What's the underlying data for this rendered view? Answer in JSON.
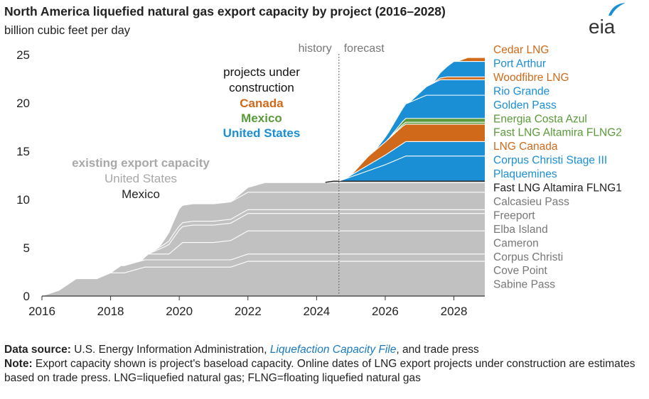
{
  "title": "North America liquefied natural gas export capacity by project (2016–2028)",
  "subtitle": "billion cubic feet per day",
  "logo_text": "eia",
  "footer": {
    "source_label": "Data source:",
    "source_text_1": " U.S. Energy Information Administration, ",
    "source_link": "Liquefaction Capacity File",
    "source_text_2": ", and trade press",
    "note_label": "Note:",
    "note_text": " Export capacity shown is project's baseload capacity. Online dates of LNG export projects under construction are estimates based on trade press. LNG=liquefied natural gas; FLNG=floating liquefied natural gas"
  },
  "colors": {
    "existing": "#c1c1c1",
    "us": "#1a8fd6",
    "canada": "#d06a1a",
    "mexico": "#5a9a3a",
    "mexico_existing": "#555555",
    "label_gray": "#777777",
    "axis": "#333333"
  },
  "chart_data": {
    "type": "area",
    "stacked": true,
    "xlim": [
      2016,
      2028.9
    ],
    "ylim": [
      0,
      25
    ],
    "x_ticks": [
      2016,
      2018,
      2020,
      2022,
      2024,
      2026,
      2028
    ],
    "y_ticks": [
      0,
      5,
      10,
      15,
      20,
      25
    ],
    "grid": false,
    "divider": {
      "x": 2024.65,
      "left_label": "history",
      "right_label": "forecast"
    },
    "annotations": {
      "construction": {
        "line1": "projects under",
        "line2": "construction",
        "canada": "Canada",
        "mexico": "Mexico",
        "us": "United States"
      },
      "existing": {
        "line1": "existing export capacity",
        "line2": "United States",
        "line3": "Mexico"
      }
    },
    "series": [
      {
        "name": "Sabine Pass",
        "group": "existing",
        "country": "United States",
        "x": [
          2016,
          2016.5,
          2017,
          2017.6,
          2018,
          2018.4,
          2019,
          2020,
          2021,
          2021.5,
          2022,
          2022.5,
          2028.9
        ],
        "values": [
          0,
          0.6,
          1.8,
          1.8,
          2.4,
          2.4,
          3.0,
          3.0,
          3.0,
          3.0,
          3.6,
          3.6,
          3.6
        ]
      },
      {
        "name": "Cove Point",
        "group": "existing",
        "country": "United States",
        "x": [
          2016,
          2018,
          2018.3,
          2028.9
        ],
        "values": [
          0,
          0,
          0.75,
          0.75
        ]
      },
      {
        "name": "Corpus Christi",
        "group": "existing",
        "country": "United States",
        "x": [
          2016,
          2018.9,
          2019.1,
          2019.7,
          2020.1,
          2021,
          2021.5,
          2022,
          2028.9
        ],
        "values": [
          0,
          0,
          0.6,
          0.6,
          1.8,
          1.8,
          2.0,
          2.4,
          2.4
        ]
      },
      {
        "name": "Cameron",
        "group": "existing",
        "country": "United States",
        "x": [
          2016,
          2019.1,
          2019.6,
          2020,
          2020.4,
          2028.9
        ],
        "values": [
          0,
          0,
          0.8,
          1.6,
          1.8,
          1.8
        ]
      },
      {
        "name": "Elba Island",
        "group": "existing",
        "country": "United States",
        "x": [
          2016,
          2019.1,
          2019.8,
          2028.9
        ],
        "values": [
          0,
          0,
          0.4,
          0.4
        ]
      },
      {
        "name": "Freeport",
        "group": "existing",
        "country": "United States",
        "x": [
          2016,
          2019.4,
          2020,
          2028.9
        ],
        "values": [
          0,
          0,
          1.8,
          1.8
        ]
      },
      {
        "name": "Calcasieu Pass",
        "group": "existing",
        "country": "United States",
        "x": [
          2016,
          2021.5,
          2022.5,
          2028.9
        ],
        "values": [
          0,
          0,
          1.0,
          1.0
        ]
      },
      {
        "name": "Fast LNG Altamira FLNG1",
        "group": "existing",
        "country": "Mexico",
        "x": [
          2016,
          2024.2,
          2024.5,
          2028.9
        ],
        "values": [
          0,
          0,
          0.15,
          0.15
        ]
      },
      {
        "name": "Plaquemines",
        "group": "construction",
        "country": "United States",
        "x": [
          2016,
          2024.65,
          2026,
          2026.6,
          2028.9
        ],
        "values": [
          0,
          0,
          1.7,
          2.6,
          2.6
        ]
      },
      {
        "name": "Corpus Christi Stage III",
        "group": "construction",
        "country": "United States",
        "x": [
          2016,
          2024.8,
          2026.6,
          2028.9
        ],
        "values": [
          0,
          0,
          1.5,
          1.5
        ]
      },
      {
        "name": "LNG Canada",
        "group": "construction",
        "country": "Canada",
        "x": [
          2016,
          2025,
          2025.5,
          2026.5,
          2028.9
        ],
        "values": [
          0,
          0,
          0.9,
          1.8,
          1.8
        ]
      },
      {
        "name": "Fast LNG Altamira FLNG2",
        "group": "construction",
        "country": "Mexico",
        "x": [
          2016,
          2026,
          2026.6,
          2028.9
        ],
        "values": [
          0,
          0,
          0.2,
          0.2
        ]
      },
      {
        "name": "Energia Costa Azul",
        "group": "construction",
        "country": "Mexico",
        "x": [
          2016,
          2026.1,
          2026.6,
          2028.9
        ],
        "values": [
          0,
          0,
          0.4,
          0.4
        ]
      },
      {
        "name": "Golden Pass",
        "group": "construction",
        "country": "United States",
        "x": [
          2016,
          2025.7,
          2026.6,
          2027.2,
          2028.9
        ],
        "values": [
          0,
          0,
          1.5,
          2.4,
          2.4
        ]
      },
      {
        "name": "Rio Grande",
        "group": "construction",
        "country": "United States",
        "x": [
          2016,
          2026.7,
          2027.6,
          2028.9
        ],
        "values": [
          0,
          0,
          1.6,
          1.6
        ]
      },
      {
        "name": "Woodfibre LNG",
        "group": "construction",
        "country": "Canada",
        "x": [
          2016,
          2027.3,
          2027.8,
          2028.9
        ],
        "values": [
          0,
          0,
          0.3,
          0.3
        ]
      },
      {
        "name": "Port Arthur",
        "group": "construction",
        "country": "United States",
        "x": [
          2016,
          2027.4,
          2028,
          2028.9
        ],
        "values": [
          0,
          0,
          1.6,
          1.6
        ]
      },
      {
        "name": "Cedar LNG",
        "group": "construction",
        "country": "Canada",
        "x": [
          2016,
          2028.1,
          2028.4,
          2028.9
        ],
        "values": [
          0,
          0,
          0.4,
          0.4
        ]
      }
    ]
  }
}
